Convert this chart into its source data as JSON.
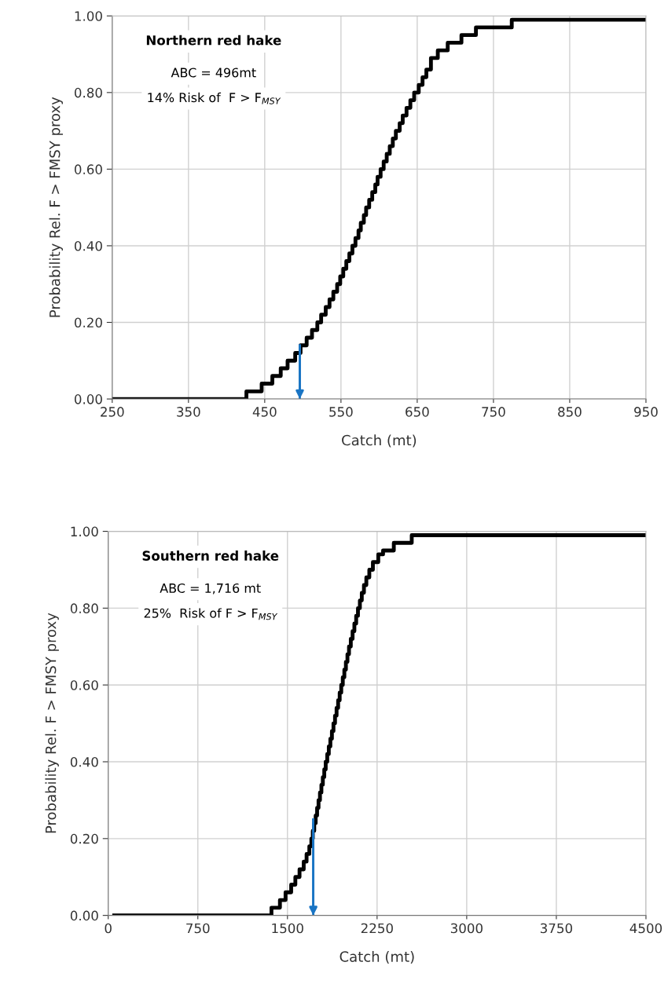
{
  "chart_data": [
    {
      "type": "step",
      "title": "Northern red hake",
      "xlabel": "Catch (mt)",
      "ylabel": "Probability Rel. F > FMSY proxy",
      "annotations": [
        "ABC = 496mt",
        "14% Risk of  F > F$_{MSY}$"
      ],
      "series": [
        {
          "color": "#000000",
          "x": [
            250,
            426,
            446,
            460,
            471,
            480,
            490,
            497,
            505,
            512,
            519,
            524,
            530,
            535,
            540,
            545,
            549,
            553,
            557,
            561,
            565,
            569,
            573,
            576,
            580,
            583,
            587,
            591,
            595,
            598,
            602,
            606,
            610,
            614,
            618,
            622,
            627,
            631,
            636,
            641,
            646,
            652,
            657,
            662,
            668,
            677,
            690,
            708,
            727,
            774,
            950
          ],
          "values": [
            0,
            0.02,
            0.04,
            0.06,
            0.08,
            0.1,
            0.12,
            0.14,
            0.16,
            0.18,
            0.2,
            0.22,
            0.24,
            0.26,
            0.28,
            0.3,
            0.32,
            0.34,
            0.36,
            0.38,
            0.4,
            0.42,
            0.44,
            0.46,
            0.48,
            0.5,
            0.52,
            0.54,
            0.56,
            0.58,
            0.6,
            0.62,
            0.64,
            0.66,
            0.68,
            0.7,
            0.72,
            0.74,
            0.76,
            0.78,
            0.8,
            0.82,
            0.84,
            0.86,
            0.89,
            0.91,
            0.93,
            0.95,
            0.97,
            0.99,
            0.99
          ]
        },
        {
          "type": "line",
          "color": "#1a75c4",
          "x": [
            496,
            496
          ],
          "values": [
            0.14,
            0
          ]
        }
      ],
      "xlim": [
        250,
        950
      ],
      "xticks": [
        250,
        350,
        450,
        550,
        650,
        750,
        850,
        950
      ],
      "ylim": [
        0,
        1
      ],
      "yticks": [
        {
          "value": 0,
          "label": "0.00"
        },
        {
          "value": 0.2,
          "label": "0.20"
        },
        {
          "value": 0.4,
          "label": "0.40"
        },
        {
          "value": 0.6,
          "label": "0.60"
        },
        {
          "value": 0.8,
          "label": "0.80"
        },
        {
          "value": 1,
          "label": "1.00"
        }
      ],
      "grid": true
    },
    {
      "type": "step",
      "title": "Southern red hake",
      "xlabel": "Catch (mt)",
      "ylabel": "Probability Rel. F > FMSY proxy",
      "annotations": [
        "ABC = 1,716 mt",
        "25%  Risk of F > F$_{MSY}$"
      ],
      "series": [
        {
          "color": "#000000",
          "x": [
            50,
            1366,
            1437,
            1484,
            1531,
            1566,
            1601,
            1636,
            1660,
            1683,
            1700,
            1712,
            1724,
            1736,
            1748,
            1760,
            1772,
            1784,
            1796,
            1808,
            1820,
            1833,
            1846,
            1859,
            1872,
            1885,
            1898,
            1911,
            1924,
            1937,
            1950,
            1963,
            1976,
            1989,
            2002,
            2015,
            2030,
            2045,
            2060,
            2075,
            2090,
            2106,
            2122,
            2140,
            2160,
            2185,
            2215,
            2260,
            2300,
            2390,
            2540,
            4500
          ],
          "values": [
            0,
            0.02,
            0.04,
            0.06,
            0.08,
            0.1,
            0.12,
            0.14,
            0.16,
            0.18,
            0.2,
            0.22,
            0.24,
            0.26,
            0.28,
            0.3,
            0.32,
            0.34,
            0.36,
            0.38,
            0.4,
            0.42,
            0.44,
            0.46,
            0.48,
            0.5,
            0.52,
            0.54,
            0.56,
            0.58,
            0.6,
            0.62,
            0.64,
            0.66,
            0.68,
            0.7,
            0.72,
            0.74,
            0.76,
            0.78,
            0.8,
            0.82,
            0.84,
            0.86,
            0.88,
            0.9,
            0.92,
            0.94,
            0.95,
            0.97,
            0.99,
            0.99
          ]
        },
        {
          "type": "line",
          "color": "#1a75c4",
          "x": [
            1716,
            1716
          ],
          "values": [
            0.25,
            0
          ]
        }
      ],
      "xlim": [
        0,
        4500
      ],
      "xticks": [
        0,
        750,
        1500,
        2250,
        3000,
        3750,
        4500
      ],
      "ylim": [
        0,
        1
      ],
      "yticks": [
        {
          "value": 0,
          "label": "0.00"
        },
        {
          "value": 0.2,
          "label": "0.20"
        },
        {
          "value": 0.4,
          "label": "0.40"
        },
        {
          "value": 0.6,
          "label": "0.60"
        },
        {
          "value": 0.8,
          "label": "0.80"
        },
        {
          "value": 1,
          "label": "1.00"
        }
      ],
      "grid": true
    }
  ]
}
